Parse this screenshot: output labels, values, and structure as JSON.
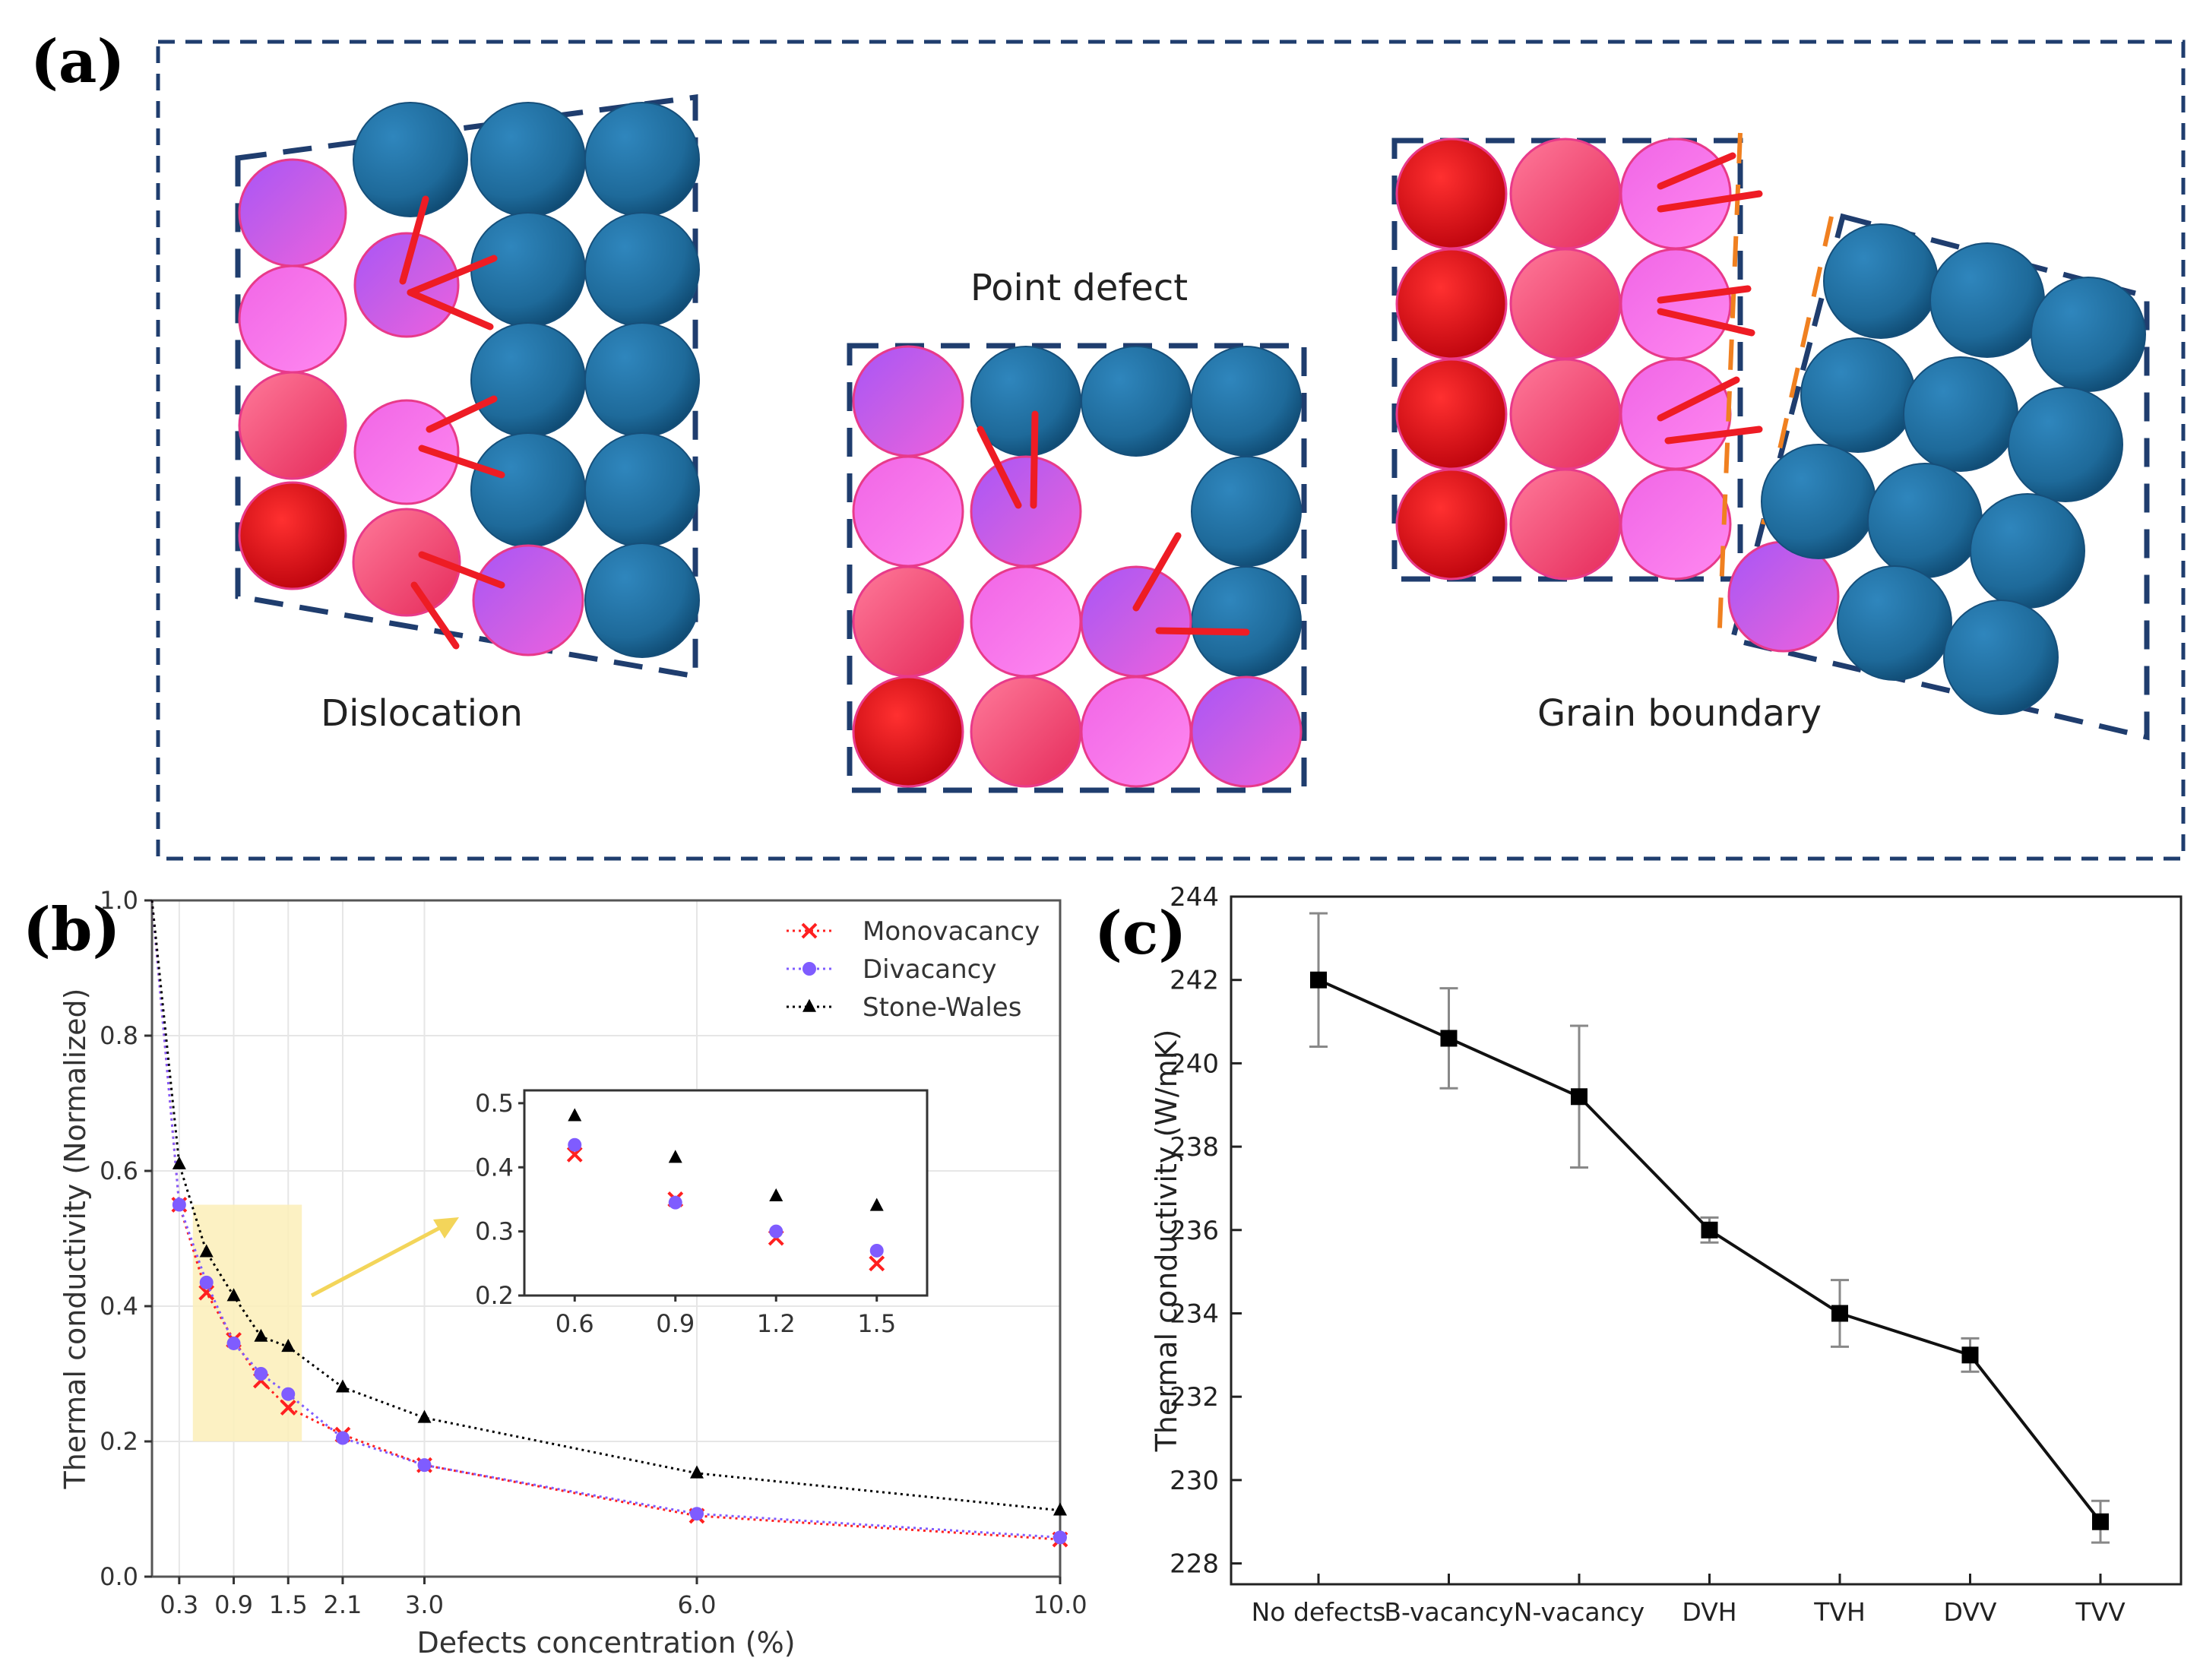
{
  "panel_a": {
    "label": "(a)",
    "dislocation_caption": "Dislocation",
    "point_defect_caption": "Point defect",
    "grain_boundary_caption": "Grain boundary"
  },
  "panel_b": {
    "label": "(b)"
  },
  "panel_c": {
    "label": "(c)"
  },
  "colors": {
    "frame": "#1f3d6e",
    "atom_blue": "#1e6a9a",
    "atom_red": "#e8141e",
    "atom_pink": "#f5557a",
    "atom_magenta": "#ee55e8",
    "atom_purple": "#9a58e6",
    "arrow_red": "#ee1c24",
    "boundary_orange": "#f08020",
    "mono": "#ff2020",
    "di": "#7f5cff",
    "sw": "#000000",
    "highlight": "#fbeeb8"
  },
  "chart_data": [
    {
      "type": "line",
      "panel": "(b)",
      "title": "",
      "xlabel": "Defects concentration (%)",
      "ylabel": "Thermal conductivity (Normalized)",
      "xlim": [
        0,
        10.0
      ],
      "ylim": [
        0,
        1.0
      ],
      "x_ticks": [
        "0.3",
        "0.9",
        "1.5",
        "2.1",
        "3.0",
        "6.0",
        "10.0"
      ],
      "y_ticks": [
        "0.0",
        "0.2",
        "0.4",
        "0.6",
        "0.8",
        "1.0"
      ],
      "x": [
        0,
        0.3,
        0.6,
        0.9,
        1.2,
        1.5,
        2.1,
        3.0,
        6.0,
        10.0
      ],
      "series": [
        {
          "name": "Monovacancy",
          "marker": "x",
          "values": [
            1.0,
            0.55,
            0.42,
            0.35,
            0.29,
            0.25,
            0.21,
            0.165,
            0.09,
            0.055
          ]
        },
        {
          "name": "Divacancy",
          "marker": "o",
          "values": [
            1.0,
            0.55,
            0.435,
            0.345,
            0.3,
            0.27,
            0.205,
            0.165,
            0.093,
            0.058
          ]
        },
        {
          "name": "Stone-Wales",
          "marker": "^",
          "values": [
            1.0,
            0.61,
            0.48,
            0.415,
            0.355,
            0.34,
            0.28,
            0.235,
            0.153,
            0.098
          ]
        }
      ],
      "legend_position": "top-right",
      "grid": true,
      "highlight_region": {
        "x": [
          0.45,
          1.65
        ],
        "y": [
          0.2,
          0.55
        ]
      },
      "inset": {
        "x_ticks": [
          "0.6",
          "0.9",
          "1.2",
          "1.5"
        ],
        "y_ticks": [
          "0.2",
          "0.3",
          "0.4",
          "0.5"
        ],
        "xlim": [
          0.45,
          1.65
        ],
        "ylim": [
          0.2,
          0.52
        ],
        "x": [
          0.6,
          0.9,
          1.2,
          1.5
        ]
      }
    },
    {
      "type": "line",
      "panel": "(c)",
      "title": "",
      "xlabel": "",
      "ylabel": "Thermal conductivity (W/mK)",
      "categories": [
        "No defects",
        "B-vacancy",
        "N-vacancy",
        "DVH",
        "TVH",
        "DVV",
        "TVV"
      ],
      "values": [
        242.0,
        240.6,
        239.2,
        236.0,
        234.0,
        233.0,
        229.0
      ],
      "errors": [
        1.6,
        1.2,
        1.7,
        0.3,
        0.8,
        0.4,
        0.5
      ],
      "ylim": [
        227.5,
        244
      ],
      "y_ticks": [
        "228",
        "230",
        "232",
        "234",
        "236",
        "238",
        "240",
        "242",
        "244"
      ],
      "grid": false
    }
  ]
}
